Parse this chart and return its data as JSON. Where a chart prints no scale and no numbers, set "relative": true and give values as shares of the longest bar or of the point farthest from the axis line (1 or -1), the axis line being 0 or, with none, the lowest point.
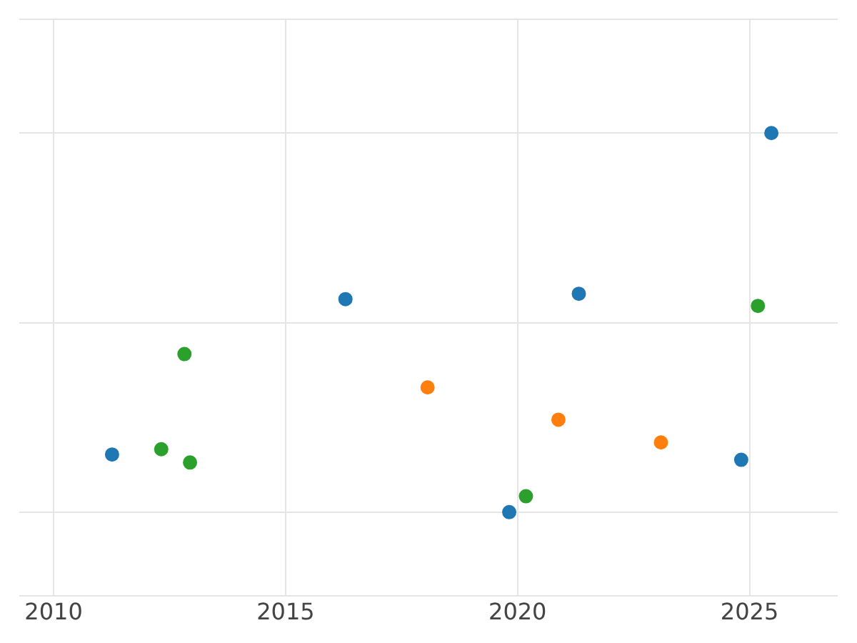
{
  "chart_data": {
    "type": "scatter",
    "relative": true,
    "marker": "circle",
    "grid": true,
    "legend": false,
    "tick_labels": "x",
    "xlim": [
      2009.26,
      2026.9
    ],
    "xticks": [
      2010,
      2015,
      2020,
      2025
    ],
    "series": [
      {
        "color": "#1f77b4",
        "x": [
          2011.26,
          2016.29,
          2019.82,
          2021.32,
          2024.82,
          2025.47
        ],
        "values": [
          0.152,
          0.562,
          0,
          0.576,
          0.138,
          1
        ]
      },
      {
        "color": "#ff7f0e",
        "x": [
          2018.06,
          2020.88,
          2023.09
        ],
        "values": [
          0.329,
          0.244,
          0.184
        ]
      },
      {
        "color": "#2ca02c",
        "x": [
          2012.32,
          2012.82,
          2012.94,
          2020.18,
          2025.18
        ],
        "values": [
          0.166,
          0.417,
          0.131,
          0.042,
          0.544
        ]
      }
    ]
  }
}
